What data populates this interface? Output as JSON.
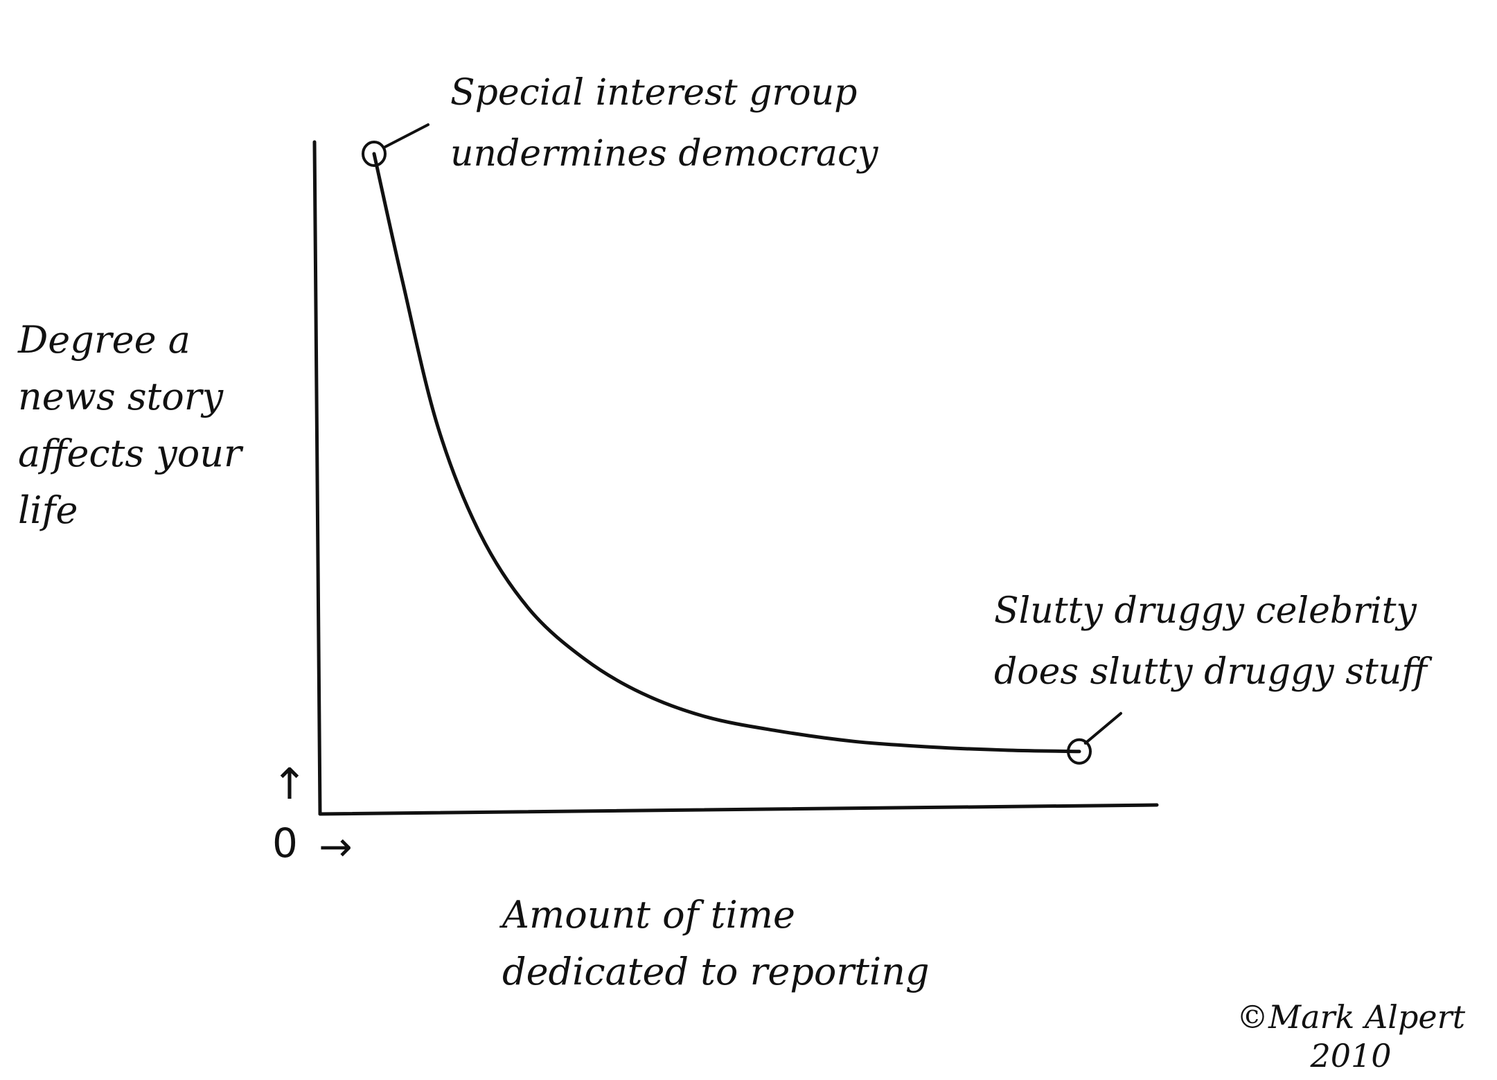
{
  "chart_data": {
    "type": "line",
    "title": "",
    "xlabel": "Amount of time dedicated to reporting",
    "ylabel": "Degree a news story affects your life",
    "xlabel_lines": [
      "Amount of time",
      "dedicated to reporting"
    ],
    "ylabel_lines": [
      "Degree a",
      "news story",
      "affects your",
      "life"
    ],
    "origin_label": "0",
    "axis_arrows": [
      "↑",
      "→"
    ],
    "series": [
      {
        "x": [
          0.0,
          0.04,
          0.09,
          0.15,
          0.22,
          0.3,
          0.38,
          0.47,
          0.57,
          0.68,
          0.79,
          0.9,
          1.0
        ],
        "values": [
          1.0,
          0.8,
          0.57,
          0.4,
          0.28,
          0.2,
          0.147,
          0.11,
          0.088,
          0.071,
          0.062,
          0.057,
          0.055
        ]
      }
    ],
    "annotations": [
      {
        "lines": [
          "Special interest group",
          "undermines democracy"
        ],
        "x": 0.0,
        "y": 1.0
      },
      {
        "lines": [
          "Slutty druggy celebrity",
          "does slutty druggy stuff"
        ],
        "x": 1.0,
        "y": 0.055
      }
    ],
    "grid": false,
    "legend": "none"
  },
  "credit": {
    "line1": "©Mark Alpert",
    "line2": "2010"
  },
  "colors": {
    "ink": "#111111",
    "paper": "#ffffff"
  }
}
